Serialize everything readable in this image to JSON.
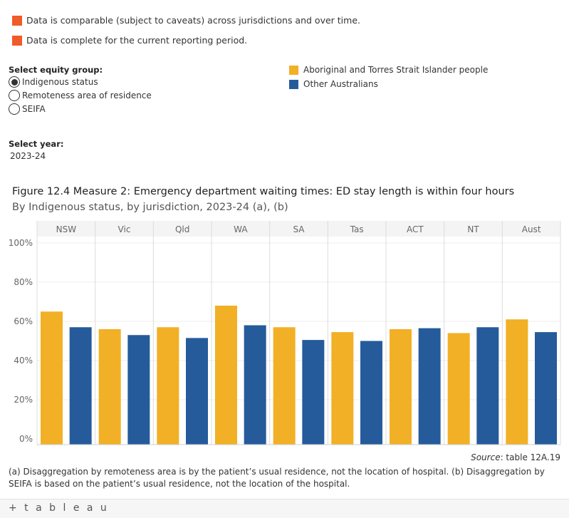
{
  "status_legend": [
    {
      "label": "Data is comparable (subject to caveats) across jurisdictions and over time.",
      "color": "#f15a29"
    },
    {
      "label": "Data is complete for the current reporting period.",
      "color": "#f15a29"
    }
  ],
  "equity_group": {
    "label": "Select equity group:",
    "options": [
      "Indigenous status",
      "Remoteness area of residence",
      "SEIFA"
    ],
    "selected_index": 0
  },
  "year_select": {
    "label": "Select year:",
    "value": "2023-24"
  },
  "title": "Figure 12.4 Measure 2: Emergency department waiting times: ED stay length is within four hours",
  "subtitle": "By Indigenous status, by jurisdiction, 2023-24 (a), (b)",
  "source": {
    "prefix": "Source",
    "text": ": table 12A.19"
  },
  "notes": "(a) Disaggregation by remoteness area is by the patient’s usual residence, not the location of hospital. (b) Disaggregation by SEIFA is based on the patient’s usual residence, not the location of the hospital.",
  "footer_logo": "+ t a b l e a u",
  "chart_data": {
    "type": "bar",
    "categories": [
      "NSW",
      "Vic",
      "Qld",
      "WA",
      "SA",
      "Tas",
      "ACT",
      "NT",
      "Aust"
    ],
    "series": [
      {
        "name": "Aboriginal and Torres Strait Islander people",
        "color": "#f2b026",
        "values": [
          65,
          56,
          57,
          68,
          57,
          54.5,
          56,
          54,
          61
        ]
      },
      {
        "name": "Other Australians",
        "color": "#255b9b",
        "values": [
          57,
          53,
          51.5,
          58,
          50.5,
          50,
          56.5,
          57,
          54.5
        ]
      }
    ],
    "ylim": [
      0,
      100
    ],
    "yticks": [
      "0%",
      "20%",
      "40%",
      "60%",
      "80%",
      "100%"
    ],
    "grid": true,
    "legend_position": "top-right"
  }
}
